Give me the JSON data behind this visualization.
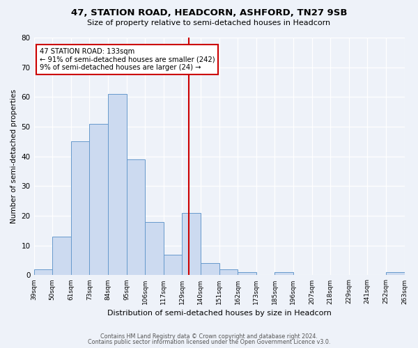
{
  "title": "47, STATION ROAD, HEADCORN, ASHFORD, TN27 9SB",
  "subtitle": "Size of property relative to semi-detached houses in Headcorn",
  "xlabel": "Distribution of semi-detached houses by size in Headcorn",
  "ylabel": "Number of semi-detached properties",
  "bin_edges": [
    39,
    50,
    61,
    73,
    84,
    95,
    106,
    117,
    129,
    140,
    151,
    162,
    173,
    185,
    196,
    207,
    218,
    229,
    241,
    252,
    263
  ],
  "bar_heights": [
    2,
    13,
    45,
    51,
    61,
    39,
    18,
    7,
    21,
    4,
    2,
    1,
    0,
    1,
    0,
    0,
    0,
    0,
    0,
    1
  ],
  "tick_labels": [
    "39sqm",
    "50sqm",
    "61sqm",
    "73sqm",
    "84sqm",
    "95sqm",
    "106sqm",
    "117sqm",
    "129sqm",
    "140sqm",
    "151sqm",
    "162sqm",
    "173sqm",
    "185sqm",
    "196sqm",
    "207sqm",
    "218sqm",
    "229sqm",
    "241sqm",
    "252sqm",
    "263sqm"
  ],
  "bar_facecolor": "#ccdaf0",
  "bar_edgecolor": "#6699cc",
  "vline_x": 133,
  "vline_color": "#cc0000",
  "annotation_line1": "47 STATION ROAD: 133sqm",
  "annotation_line2": "← 91% of semi-detached houses are smaller (242)",
  "annotation_line3": "9% of semi-detached houses are larger (24) →",
  "annotation_box_edgecolor": "#cc0000",
  "ylim": [
    0,
    80
  ],
  "yticks": [
    0,
    10,
    20,
    30,
    40,
    50,
    60,
    70,
    80
  ],
  "background_color": "#eef2f9",
  "footer_line1": "Contains HM Land Registry data © Crown copyright and database right 2024.",
  "footer_line2": "Contains public sector information licensed under the Open Government Licence v3.0."
}
